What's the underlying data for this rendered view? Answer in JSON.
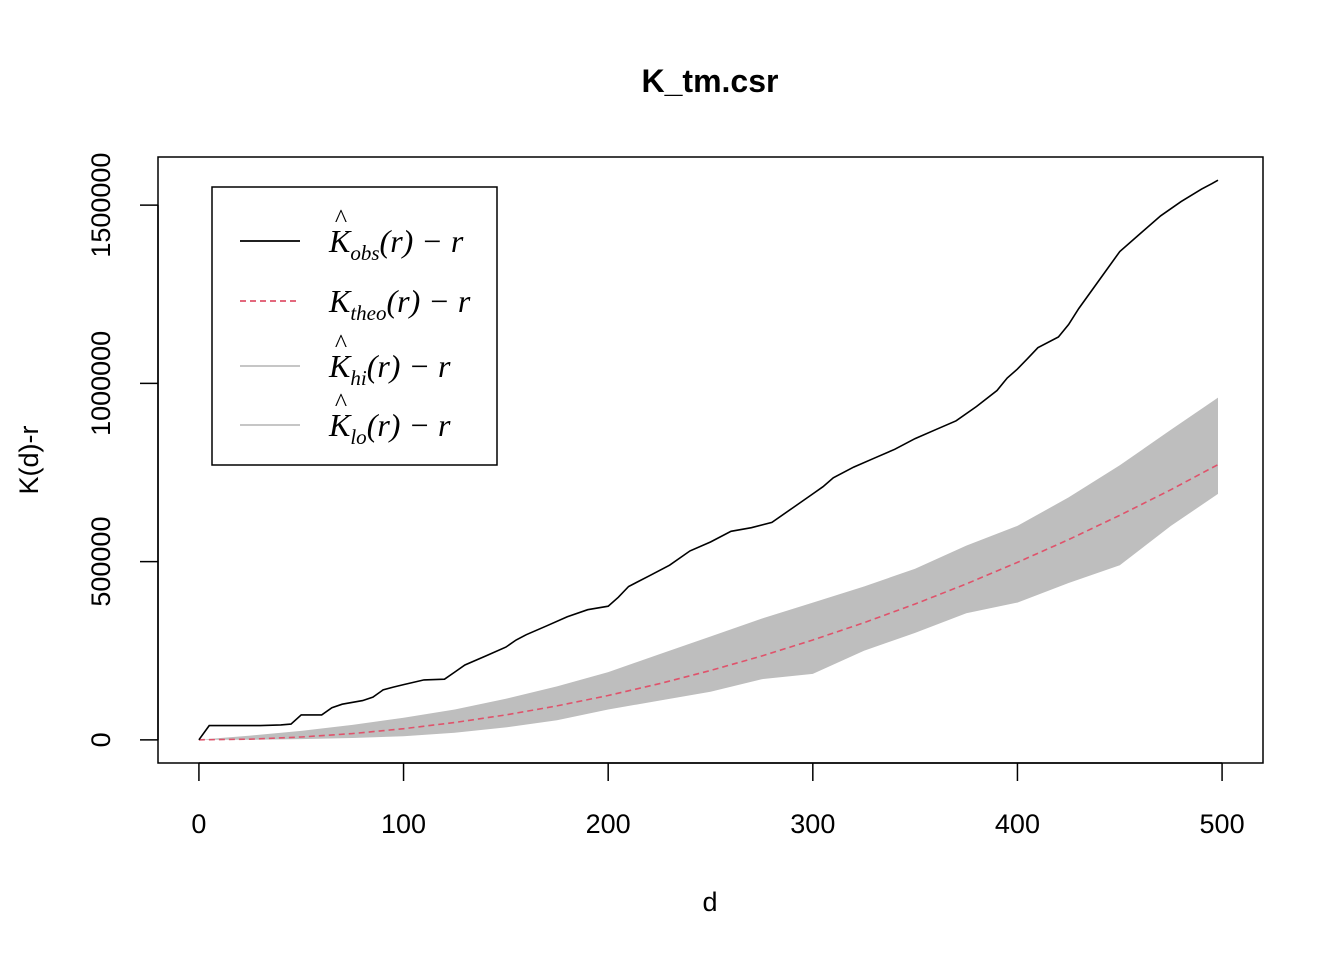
{
  "chart_data": {
    "type": "line",
    "title": "K_tm.csr",
    "xlabel": "d",
    "ylabel": "K(d)-r",
    "xlim": [
      -20,
      520
    ],
    "ylim": [
      -65000,
      1635000
    ],
    "xticks": [
      0,
      100,
      200,
      300,
      400,
      500
    ],
    "xtick_labels": [
      "0",
      "100",
      "200",
      "300",
      "400",
      "500"
    ],
    "yticks": [
      0,
      500000,
      1000000,
      1500000
    ],
    "ytick_labels": [
      "0",
      "500000",
      "1000000",
      "1500000"
    ],
    "grid": false,
    "legend_placement": "top-left",
    "colors": {
      "obs": "#000000",
      "theo": "#DF536B",
      "band": "#BEBEBE"
    },
    "series": [
      {
        "name": "K_obs(r) - r",
        "legend": {
          "symbol": "K",
          "hat": true,
          "sub": "obs"
        },
        "style": "solid",
        "x": [
          0,
          5,
          10,
          20,
          30,
          40,
          45,
          50,
          60,
          65,
          70,
          80,
          85,
          90,
          95,
          100,
          110,
          120,
          125,
          130,
          140,
          150,
          155,
          160,
          170,
          180,
          190,
          200,
          205,
          210,
          220,
          230,
          240,
          250,
          260,
          270,
          280,
          290,
          300,
          305,
          310,
          320,
          330,
          340,
          350,
          360,
          370,
          380,
          390,
          395,
          400,
          405,
          410,
          420,
          425,
          430,
          440,
          450,
          460,
          470,
          480,
          490,
          495,
          498
        ],
        "y": [
          0,
          40000,
          40000,
          40000,
          40000,
          42000,
          44000,
          70000,
          70000,
          90000,
          100000,
          110000,
          120000,
          140000,
          148000,
          155000,
          168000,
          170000,
          190000,
          210000,
          235000,
          260000,
          280000,
          295000,
          320000,
          345000,
          365000,
          375000,
          400000,
          430000,
          460000,
          490000,
          530000,
          555000,
          585000,
          595000,
          610000,
          650000,
          690000,
          710000,
          735000,
          765000,
          790000,
          815000,
          845000,
          870000,
          895000,
          935000,
          980000,
          1015000,
          1040000,
          1070000,
          1100000,
          1130000,
          1165000,
          1210000,
          1290000,
          1370000,
          1420000,
          1470000,
          1510000,
          1545000,
          1560000,
          1570000
        ]
      },
      {
        "name": "K_theo(r) - r",
        "legend": {
          "symbol": "K",
          "hat": false,
          "sub": "theo"
        },
        "style": "dashed",
        "x": [
          0,
          25,
          50,
          75,
          100,
          125,
          150,
          175,
          200,
          225,
          250,
          275,
          300,
          325,
          350,
          375,
          400,
          425,
          450,
          475,
          498
        ],
        "y": [
          0,
          1900,
          7800,
          17500,
          31100,
          48600,
          70000,
          95300,
          124400,
          157500,
          194400,
          235200,
          280000,
          328600,
          381100,
          437500,
          497700,
          561800,
          629800,
          701800,
          772000
        ]
      },
      {
        "name": "K_hi(r) - r",
        "legend": {
          "symbol": "K",
          "hat": true,
          "sub": "hi"
        },
        "style": "band-upper",
        "x": [
          0,
          25,
          50,
          75,
          100,
          125,
          150,
          175,
          200,
          225,
          250,
          275,
          300,
          325,
          350,
          375,
          400,
          425,
          450,
          475,
          498
        ],
        "y": [
          0,
          12000,
          25000,
          42000,
          62000,
          85000,
          115000,
          150000,
          190000,
          240000,
          290000,
          340000,
          385000,
          430000,
          480000,
          545000,
          600000,
          680000,
          770000,
          870000,
          960000
        ]
      },
      {
        "name": "K_lo(r) - r",
        "legend": {
          "symbol": "K",
          "hat": true,
          "sub": "lo"
        },
        "style": "band-lower",
        "x": [
          0,
          25,
          50,
          75,
          100,
          125,
          150,
          175,
          200,
          225,
          250,
          275,
          300,
          325,
          350,
          375,
          400,
          425,
          450,
          475,
          498
        ],
        "y": [
          0,
          0,
          2000,
          5000,
          10000,
          20000,
          35000,
          55000,
          85000,
          110000,
          135000,
          170000,
          185000,
          250000,
          300000,
          355000,
          385000,
          440000,
          490000,
          600000,
          690000
        ]
      }
    ]
  }
}
